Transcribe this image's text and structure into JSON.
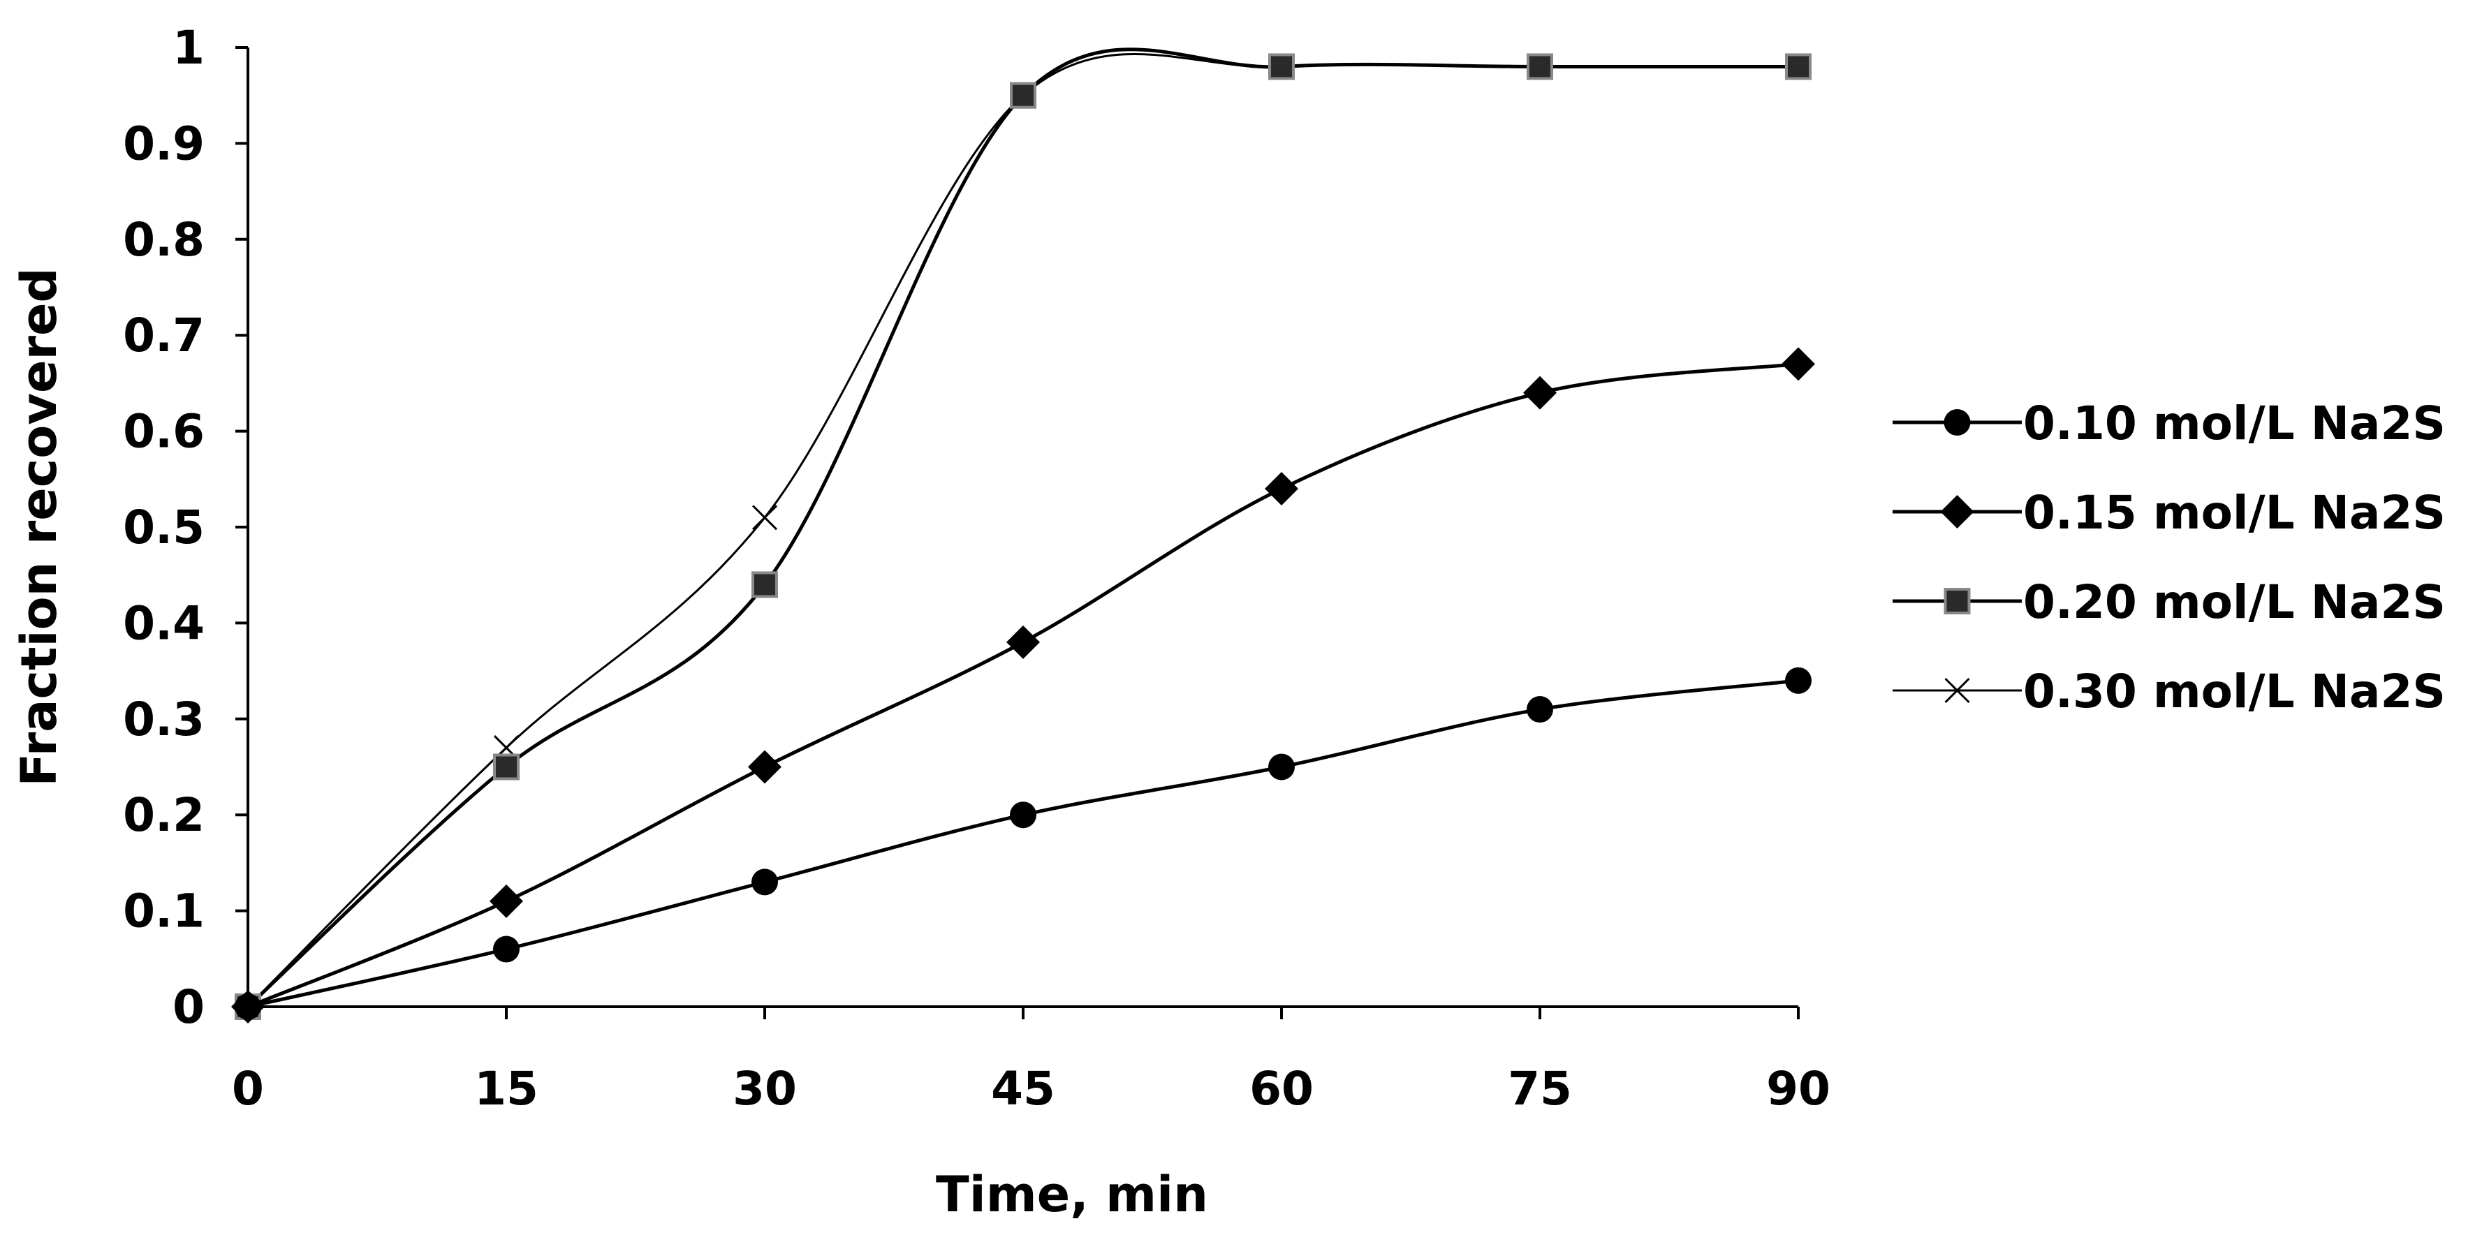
{
  "chart_data": {
    "type": "line",
    "title": "",
    "xlabel": "Time, min",
    "ylabel": "Fraction recovered",
    "x": [
      0,
      15,
      30,
      45,
      60,
      75,
      90
    ],
    "x_ticks": [
      "0",
      "15",
      "30",
      "45",
      "60",
      "75",
      "90"
    ],
    "y_ticks": [
      "0",
      "0.1",
      "0.2",
      "0.3",
      "0.4",
      "0.5",
      "0.6",
      "0.7",
      "0.8",
      "0.9",
      "1"
    ],
    "xlim": [
      0,
      90
    ],
    "ylim": [
      0,
      1
    ],
    "grid": false,
    "smooth": true,
    "legend_position": "right",
    "series": [
      {
        "name": "0.10 mol/L Na2S",
        "marker": "circle",
        "values": [
          0,
          0.06,
          0.13,
          0.2,
          0.25,
          0.31,
          0.34
        ]
      },
      {
        "name": "0.15 mol/L Na2S",
        "marker": "diamond",
        "values": [
          0,
          0.11,
          0.25,
          0.38,
          0.54,
          0.64,
          0.67
        ]
      },
      {
        "name": "0.20 mol/L Na2S",
        "marker": "square",
        "values": [
          0,
          0.25,
          0.44,
          0.95,
          0.98,
          0.98,
          0.98
        ]
      },
      {
        "name": "0.30 mol/L Na2S",
        "marker": "x",
        "values": [
          0,
          0.27,
          0.51,
          0.95,
          0.98,
          0.98,
          0.98
        ]
      }
    ]
  },
  "colors": {
    "line": "#000000",
    "marker_fill": "#000000",
    "square_fill": "#2a2a2a",
    "square_stroke": "#888888",
    "background": "#ffffff"
  }
}
